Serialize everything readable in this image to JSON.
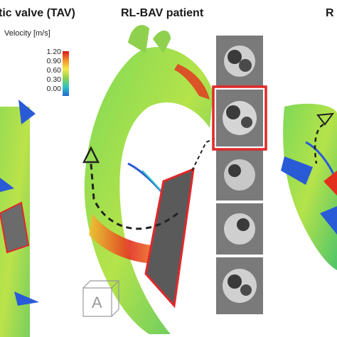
{
  "panels": {
    "left_title": "tic valve (TAV)",
    "middle_title": "RL-BAV patient",
    "right_title": "R"
  },
  "legend": {
    "label": "Velocity [m/s]",
    "ticks": [
      "1.20",
      "0.90",
      "0.60",
      "0.30",
      "0.00"
    ],
    "colors": [
      "#d7191c",
      "#f28c28",
      "#f7e94a",
      "#8fd14f",
      "#2fc4c4",
      "#2166d1"
    ]
  },
  "orientation_cube": {
    "letter": "A"
  },
  "mri_strip": {
    "frame_count": 5,
    "highlighted_index": 1,
    "highlight_color": "#e0282a"
  }
}
